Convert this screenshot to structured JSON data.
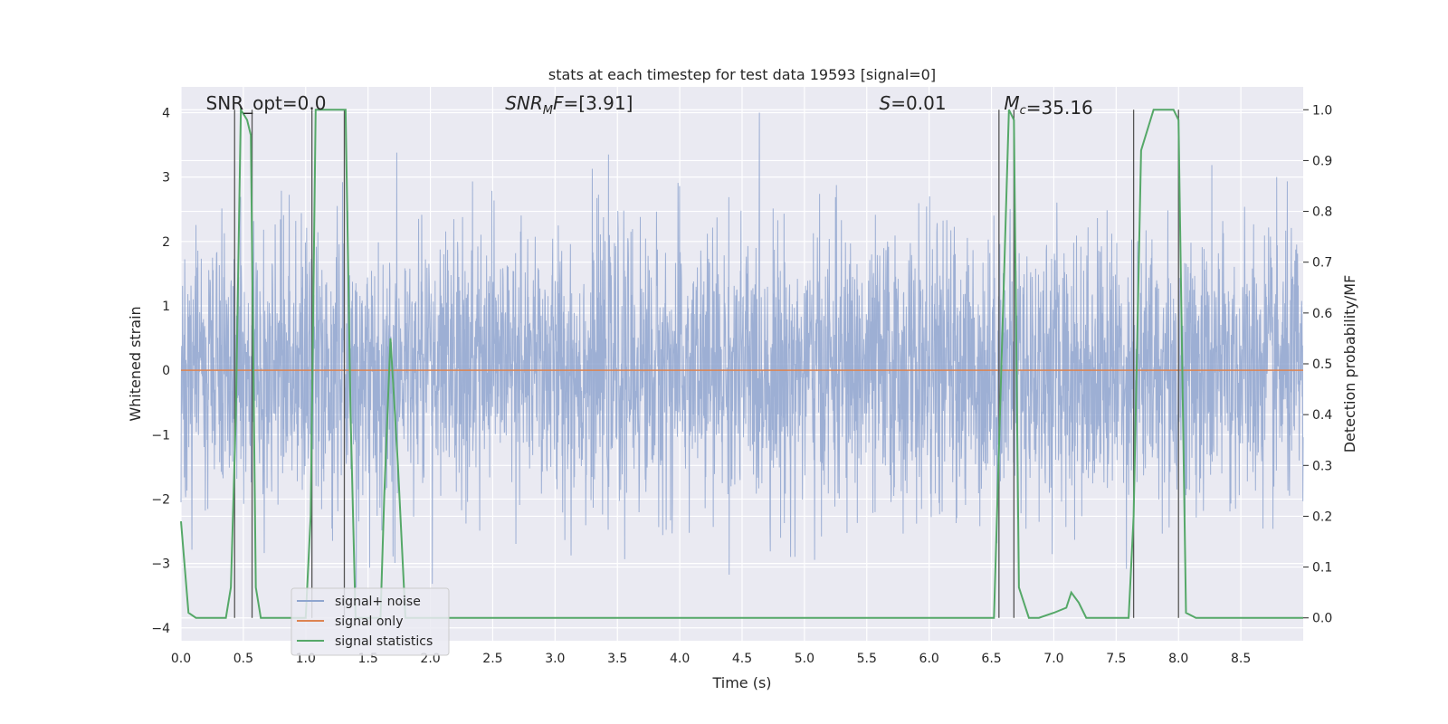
{
  "chart_data": {
    "type": "line",
    "title": "stats at each timestep for test data 19593 [signal=0]",
    "xlabel": "Time (s)",
    "ylabel": "Whitened strain",
    "y2label": "Detection probability/MF",
    "xlim": [
      0,
      9.0
    ],
    "ylim": [
      -4.2,
      4.4
    ],
    "y2lim": [
      -0.045,
      1.045
    ],
    "grid": true,
    "background": "#eaeaf2",
    "x_ticks": [
      0.0,
      0.5,
      1.0,
      1.5,
      2.0,
      2.5,
      3.0,
      3.5,
      4.0,
      4.5,
      5.0,
      5.5,
      6.0,
      6.5,
      7.0,
      7.5,
      8.0,
      8.5
    ],
    "x_tick_labels": [
      "0.0",
      "0.5",
      "1.0",
      "1.5",
      "2.0",
      "2.5",
      "3.0",
      "3.5",
      "4.0",
      "4.5",
      "5.0",
      "5.5",
      "6.0",
      "6.5",
      "7.0",
      "7.5",
      "8.0",
      "8.5"
    ],
    "y_ticks": [
      4,
      3,
      2,
      1,
      0,
      -1,
      -2,
      -3,
      -4
    ],
    "y_tick_labels": [
      "4",
      "3",
      "2",
      "1",
      "0",
      "−1",
      "−2",
      "−3",
      "−4"
    ],
    "y2_ticks": [
      1.0,
      0.9,
      0.8,
      0.7,
      0.6,
      0.5,
      0.4,
      0.3,
      0.2,
      0.1,
      0.0
    ],
    "y2_tick_labels": [
      "1.0",
      "0.9",
      "0.8",
      "0.7",
      "0.6",
      "0.5",
      "0.4",
      "0.3",
      "0.2",
      "0.1",
      "0.0"
    ],
    "annotations": [
      {
        "x": 0.2,
        "y": 4.05,
        "text": "SNR_opt=0.0",
        "italic_part": ""
      },
      {
        "x": 2.6,
        "y": 4.05,
        "text": "=[3.91]",
        "math_prefix": "SNR",
        "math_sub": "M",
        "math_suffix": "F"
      },
      {
        "x": 5.6,
        "y": 4.05,
        "text": "=0.01",
        "math_prefix": "S"
      },
      {
        "x": 6.6,
        "y": 4.05,
        "text": "=35.16",
        "math_prefix": "M",
        "math_sub": "c"
      }
    ],
    "series": [
      {
        "name": "signal+ noise",
        "color": "#8fa5cf",
        "description": "whitened noise, approx. unit variance, clipped to about [-3.7, 4.0]",
        "std": 1.0,
        "x_range": [
          0.0,
          9.0
        ]
      },
      {
        "name": "signal only",
        "color": "#dd8452",
        "x": [
          0.0,
          9.0
        ],
        "y": [
          0.0,
          0.0
        ]
      },
      {
        "name": "signal statistics",
        "color": "#55a868",
        "axis": "right",
        "x": [
          0.0,
          0.06,
          0.12,
          0.2,
          0.28,
          0.36,
          0.4,
          0.44,
          0.48,
          0.53,
          0.56,
          0.6,
          0.64,
          0.7,
          0.8,
          0.9,
          1.0,
          1.04,
          1.08,
          1.12,
          1.2,
          1.32,
          1.36,
          1.4,
          1.5,
          1.6,
          1.63,
          1.68,
          1.74,
          1.8,
          1.9,
          2.0,
          2.5,
          3.0,
          3.5,
          4.0,
          4.5,
          5.0,
          5.5,
          6.0,
          6.4,
          6.52,
          6.58,
          6.64,
          6.68,
          6.72,
          6.8,
          6.88,
          7.0,
          7.1,
          7.14,
          7.2,
          7.26,
          7.4,
          7.6,
          7.64,
          7.7,
          7.8,
          7.9,
          7.96,
          8.0,
          8.06,
          8.14,
          8.3,
          8.6,
          9.0
        ],
        "y": [
          0.19,
          0.01,
          0.0,
          0.0,
          0.0,
          0.0,
          0.06,
          0.4,
          1.0,
          0.98,
          0.95,
          0.06,
          0.0,
          0.0,
          0.0,
          0.0,
          0.0,
          0.2,
          1.0,
          1.0,
          1.0,
          1.0,
          0.4,
          0.0,
          0.0,
          0.0,
          0.24,
          0.55,
          0.3,
          0.0,
          0.0,
          0.0,
          0.0,
          0.0,
          0.0,
          0.0,
          0.0,
          0.0,
          0.0,
          0.0,
          0.0,
          0.0,
          0.5,
          1.0,
          0.98,
          0.06,
          0.0,
          0.0,
          0.01,
          0.02,
          0.05,
          0.03,
          0.0,
          0.0,
          0.0,
          0.2,
          0.92,
          1.0,
          1.0,
          1.0,
          0.98,
          0.01,
          0.0,
          0.0,
          0.0,
          0.0
        ]
      }
    ],
    "vertical_lines": [
      0.43,
      0.57,
      1.05,
      1.31,
      6.56,
      6.68,
      7.64,
      8.0
    ],
    "vertical_line_color": "#555555",
    "legend": {
      "placement": "lower-left",
      "entries": [
        "signal+ noise",
        "signal only",
        "signal statistics"
      ]
    }
  }
}
